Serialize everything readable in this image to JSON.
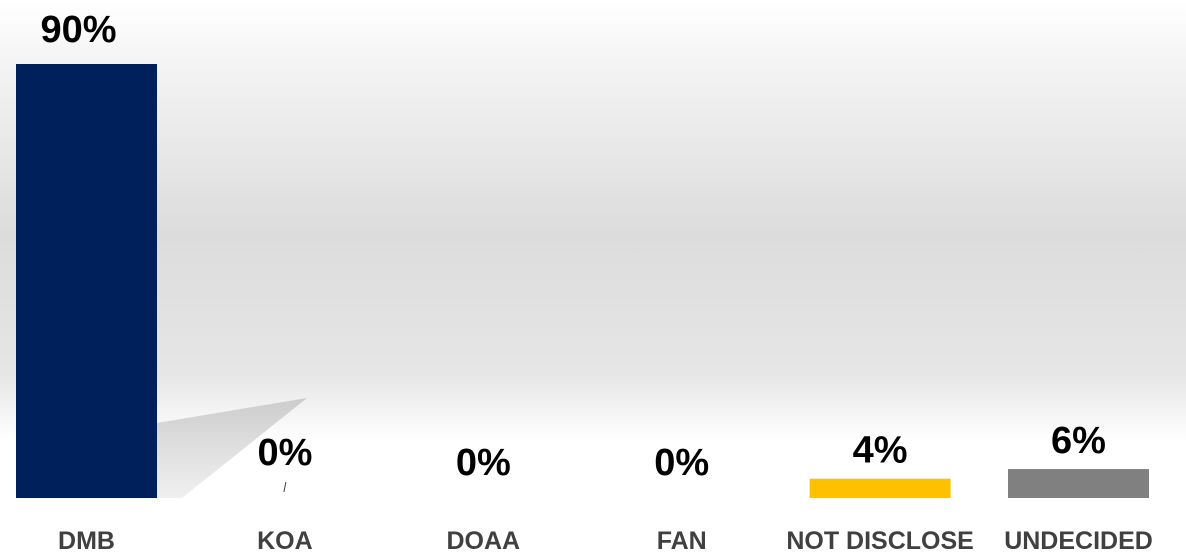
{
  "chart_data": {
    "type": "bar",
    "categories": [
      "DMB",
      "KOA",
      "DOAA",
      "FAN",
      "NOT DISCLOSE",
      "UNDECIDED"
    ],
    "values": [
      90,
      0,
      0,
      0,
      4,
      6
    ],
    "data_labels": [
      "90%",
      "0%",
      "0%",
      "0%",
      "4%",
      "6%"
    ],
    "colors": [
      "#00205b",
      "#00205b",
      "#00205b",
      "#00205b",
      "#ffc000",
      "#808080"
    ],
    "ylim": [
      0,
      90
    ],
    "grid": false,
    "legend": "none"
  }
}
